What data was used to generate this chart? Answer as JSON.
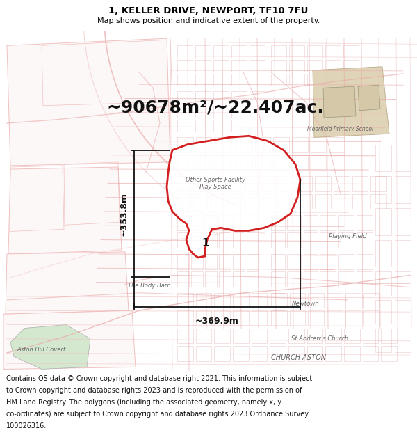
{
  "title_line1": "1, KELLER DRIVE, NEWPORT, TF10 7FU",
  "title_line2": "Map shows position and indicative extent of the property.",
  "area_text": "~90678m²/~22.407ac.",
  "dim_vertical": "~353.8m",
  "dim_horizontal": "~369.9m",
  "label_number": "1",
  "footer_lines": [
    "Contains OS data © Crown copyright and database right 2021. This information is subject",
    "to Crown copyright and database rights 2023 and is reproduced with the permission of",
    "HM Land Registry. The polygons (including the associated geometry, namely x, y",
    "co-ordinates) are subject to Crown copyright and database rights 2023 Ordnance Survey",
    "100026316."
  ],
  "map_bg": "#f8f2f2",
  "street_color": "#e8a8a8",
  "street_color2": "#f0c0c0",
  "street_color3": "#d08080",
  "poly_color": "#cc0000",
  "poly_lw": 2.0,
  "dim_color": "#111111",
  "label_color": "#111111",
  "green_color": "#d4e8d0",
  "beige_color": "#e0d4b8",
  "gray_text": "#666666",
  "footer_bg": "#ffffff",
  "title_bg": "#ffffff",
  "title_fontsize": 9.5,
  "subtitle_fontsize": 8.0,
  "area_fontsize": 18,
  "dim_fontsize": 9,
  "label_fontsize": 11,
  "footer_fontsize": 7.0
}
